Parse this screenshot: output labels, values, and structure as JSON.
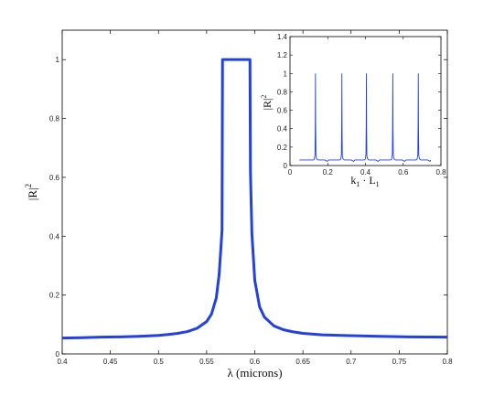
{
  "chart_data": [
    {
      "type": "line",
      "title": "",
      "xlabel": "λ (microns)",
      "ylabel": "|R|",
      "ylabel_superscript": "2",
      "xlim": [
        0.4,
        0.8
      ],
      "ylim": [
        0,
        1.1
      ],
      "xticks": [
        "0.4",
        "0.45",
        "0.5",
        "0.55",
        "0.6",
        "0.65",
        "0.7",
        "0.75",
        "0.8"
      ],
      "yticks": [
        "0",
        "0.2",
        "0.4",
        "0.6",
        "0.8",
        "1"
      ],
      "series": [
        {
          "color": "#2340e0",
          "x": [
            0.4,
            0.42,
            0.44,
            0.46,
            0.48,
            0.5,
            0.51,
            0.52,
            0.53,
            0.54,
            0.55,
            0.555,
            0.56,
            0.563,
            0.566,
            0.5665,
            0.5675,
            0.595,
            0.5955,
            0.597,
            0.6,
            0.605,
            0.61,
            0.62,
            0.63,
            0.64,
            0.65,
            0.67,
            0.7,
            0.73,
            0.76,
            0.8
          ],
          "y": [
            0.054,
            0.055,
            0.057,
            0.058,
            0.06,
            0.063,
            0.066,
            0.07,
            0.076,
            0.087,
            0.11,
            0.135,
            0.19,
            0.27,
            0.42,
            1.0,
            1.0,
            1.0,
            0.62,
            0.41,
            0.25,
            0.16,
            0.125,
            0.095,
            0.082,
            0.075,
            0.07,
            0.065,
            0.062,
            0.06,
            0.058,
            0.057
          ]
        }
      ]
    },
    {
      "type": "line",
      "title": "",
      "xlabel": "k",
      "xlabel_sub1": "1",
      "xlabel_mid": " · L",
      "xlabel_sub2": "1",
      "ylabel": "|R|",
      "ylabel_superscript": "2",
      "xlim": [
        0,
        0.8
      ],
      "ylim": [
        0,
        1.4
      ],
      "xticks": [
        "0",
        "0.2",
        "0.4",
        "0.6",
        "0.8"
      ],
      "yticks": [
        "0",
        "0.2",
        "0.4",
        "0.6",
        "0.8",
        "1",
        "1.2",
        "1.4"
      ],
      "baseline": 0.06,
      "peaks": [
        0.135,
        0.275,
        0.405,
        0.545,
        0.68
      ],
      "series": [
        {
          "color": "#2340e0"
        }
      ]
    }
  ]
}
